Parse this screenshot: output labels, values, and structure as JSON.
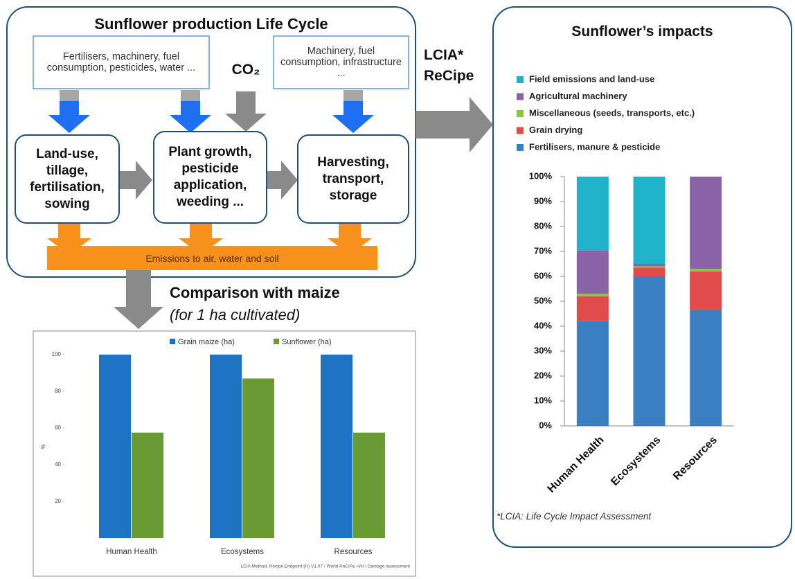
{
  "diagram": {
    "title": "Sunflower production Life Cycle",
    "inputs": [
      "Fertilisers, machinery, fuel consumption, pesticides, water ...",
      "Machinery, fuel consumption, infrastructure ..."
    ],
    "co2": "CO₂",
    "processes": [
      "Land-use, tillage, fertilisation, sowing",
      "Plant growth, pesticide application, weeding ...",
      "Harvesting, transport, storage"
    ],
    "emissions": "Emissions to air, water and soil",
    "comparison_title": "Comparison with maize",
    "comparison_subtitle": "(for 1 ha cultivated)",
    "method_label": [
      "LCIA*",
      "ReCipe"
    ],
    "impacts_title": "Sunflower’s impacts",
    "footnote": "*LCIA: Life Cycle Impact Assessment"
  },
  "chart_data": [
    {
      "type": "bar",
      "categories": [
        "Human Health",
        "Ecosystems",
        "Resources"
      ],
      "series": [
        {
          "name": "Grain maize (ha)",
          "color": "#1f73c4",
          "values": [
            100,
            100,
            100
          ]
        },
        {
          "name": "Sunflower (ha)",
          "color": "#6a9a34",
          "values": [
            57.5,
            87,
            57.5
          ]
        }
      ],
      "ylabel": "%",
      "ylim": [
        0,
        100
      ],
      "yticks": [
        20,
        40,
        60,
        80,
        100
      ],
      "note": "LCIA Method: Recipe Endpoint (H) V1.07 / World ReCiPe H/H / Damage assessment",
      "grid": false
    },
    {
      "type": "stacked_bar",
      "categories": [
        "Human Health",
        "Ecosystems",
        "Resources"
      ],
      "series": [
        {
          "name": "Fertilisers, manure & pesticide",
          "color": "#3a7fc1",
          "values": [
            42,
            60,
            46.5
          ]
        },
        {
          "name": "Grain drying",
          "color": "#e04b4b",
          "values": [
            10,
            3.5,
            15.5
          ]
        },
        {
          "name": "Miscellaneous (seeds, transports, etc.)",
          "color": "#8cc63f",
          "values": [
            1,
            0.5,
            1
          ]
        },
        {
          "name": "Agricultural machinery",
          "color": "#8b64a8",
          "values": [
            17.5,
            1,
            37
          ]
        },
        {
          "name": "Field emissions and land-use",
          "color": "#1fb2c9",
          "values": [
            29.5,
            35,
            0
          ]
        }
      ],
      "ylim": [
        0,
        100
      ],
      "yticks": [
        {
          "value": 0,
          "label": "0%"
        },
        {
          "value": 10,
          "label": "10%"
        },
        {
          "value": 20,
          "label": "20%"
        },
        {
          "value": 30,
          "label": "30%"
        },
        {
          "value": 40,
          "label": "40%"
        },
        {
          "value": 50,
          "label": "50%"
        },
        {
          "value": 60,
          "label": "60%"
        },
        {
          "value": 70,
          "label": "70%"
        },
        {
          "value": 80,
          "label": "80%"
        },
        {
          "value": 90,
          "label": "90%"
        },
        {
          "value": 100,
          "label": "100%"
        }
      ],
      "legend": "top",
      "grid": false
    }
  ]
}
